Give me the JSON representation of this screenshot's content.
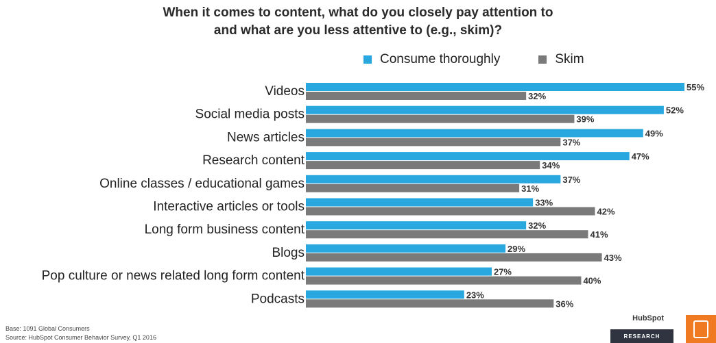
{
  "chart_data": {
    "type": "bar",
    "orientation": "horizontal",
    "title": "When it comes to content, what do you closely pay attention to and what are you less attentive to (e.g., skim)?",
    "title_lines": [
      "When it comes to content, what do you closely pay attention to",
      "and what are you less attentive to (e.g., skim)?"
    ],
    "categories": [
      "Videos",
      "Social media posts",
      "News articles",
      "Research content",
      "Online classes / educational games",
      "Interactive articles or tools",
      "Long form business content",
      "Blogs",
      "Pop culture or news related long form content",
      "Podcasts"
    ],
    "series": [
      {
        "name": "Consume thoroughly",
        "color": "#29a8df",
        "values": [
          55,
          52,
          49,
          47,
          37,
          33,
          32,
          29,
          27,
          23
        ]
      },
      {
        "name": "Skim",
        "color": "#7a7a7a",
        "values": [
          32,
          39,
          37,
          34,
          31,
          42,
          41,
          43,
          40,
          36
        ]
      }
    ],
    "value_suffix": "%",
    "xlim": [
      0,
      55
    ],
    "grid": false,
    "legend_position": "top"
  },
  "footnotes": {
    "base": "Base: 1091 Global Consumers",
    "source": "Source: HubSpot Consumer Behavior Survey, Q1 2016"
  },
  "branding": {
    "logo_text": "HubSpot",
    "research_label": "RESEARCH",
    "accent_color": "#f07a22"
  }
}
